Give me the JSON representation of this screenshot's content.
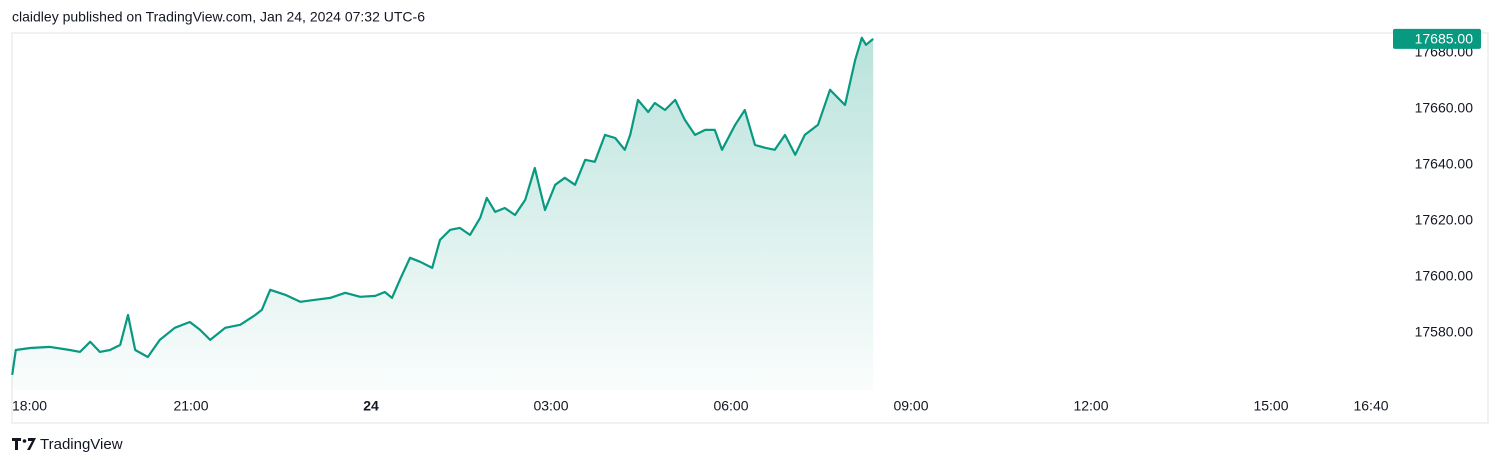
{
  "header": "claidley published on TradingView.com, Jan 24, 2024 07:32 UTC-6",
  "footer_brand": "TradingView",
  "chart_data": {
    "type": "area",
    "color": "#089981",
    "x": [
      0.02,
      0.08,
      0.32,
      0.65,
      0.98,
      1.15,
      1.32,
      1.48,
      1.65,
      1.82,
      1.95,
      2.07,
      2.28,
      2.48,
      2.73,
      2.98,
      3.15,
      3.32,
      3.57,
      3.82,
      4.07,
      4.18,
      4.32,
      4.57,
      4.82,
      5.07,
      5.32,
      5.57,
      5.82,
      6.07,
      6.23,
      6.35,
      6.48,
      6.65,
      6.82,
      7.02,
      7.15,
      7.32,
      7.48,
      7.65,
      7.82,
      7.93,
      8.07,
      8.23,
      8.4,
      8.57,
      8.73,
      8.9,
      9.07,
      9.23,
      9.4,
      9.57,
      9.73,
      9.9,
      10.07,
      10.23,
      10.32,
      10.45,
      10.62,
      10.73,
      10.9,
      11.07,
      11.23,
      11.4,
      11.57,
      11.73,
      11.85,
      12.07,
      12.23,
      12.4,
      12.57,
      12.73,
      12.9,
      13.07,
      13.23,
      13.45,
      13.65,
      13.9,
      14.07,
      14.18,
      14.25,
      14.37
    ],
    "values": [
      17565,
      17573.9,
      17574.6,
      17575,
      17573.9,
      17573.2,
      17576.8,
      17573.2,
      17573.9,
      17575.7,
      17586.4,
      17573.9,
      17571.4,
      17577.5,
      17581.8,
      17583.9,
      17581.1,
      17577.5,
      17581.8,
      17582.9,
      17586.4,
      17588.2,
      17595.4,
      17593.6,
      17591.1,
      17591.8,
      17592.5,
      17594.3,
      17592.9,
      17593.2,
      17594.6,
      17592.5,
      17598.9,
      17606.8,
      17605.4,
      17603.2,
      17613.2,
      17616.8,
      17617.5,
      17615,
      17621.1,
      17628.2,
      17623.2,
      17624.6,
      17622.1,
      17627.5,
      17638.9,
      17623.9,
      17632.9,
      17635.4,
      17632.9,
      17641.8,
      17641.1,
      17650.7,
      17649.6,
      17645.4,
      17650.7,
      17663.2,
      17658.9,
      17662.1,
      17659.6,
      17663.2,
      17656.1,
      17650.7,
      17652.5,
      17652.5,
      17645.4,
      17654.3,
      17659.6,
      17647.1,
      17646.1,
      17645.4,
      17650.7,
      17643.6,
      17650.7,
      17654.3,
      17666.8,
      17661.4,
      17677.5,
      17685.4,
      17682.9,
      17685
    ],
    "xlim": [
      0.017,
      22.95
    ],
    "ylim": [
      17559.6,
      17687.1
    ],
    "xticks": [
      {
        "value": 0,
        "label": "18:00"
      },
      {
        "value": 3,
        "label": "21:00"
      },
      {
        "value": 6,
        "label": "24"
      },
      {
        "value": 9,
        "label": "03:00"
      },
      {
        "value": 12,
        "label": "06:00"
      },
      {
        "value": 15,
        "label": "09:00"
      },
      {
        "value": 18,
        "label": "12:00"
      },
      {
        "value": 21,
        "label": "15:00"
      },
      {
        "value": 22.667,
        "label": "16:40"
      }
    ],
    "yticks": [
      {
        "value": 17580,
        "label": "17580.00"
      },
      {
        "value": 17600,
        "label": "17600.00"
      },
      {
        "value": 17620,
        "label": "17620.00"
      },
      {
        "value": 17640,
        "label": "17640.00"
      },
      {
        "value": 17660,
        "label": "17660.00"
      },
      {
        "value": 17680,
        "label": "17680.00"
      }
    ],
    "last_price": {
      "value": 17685,
      "label": "17685.00"
    }
  }
}
